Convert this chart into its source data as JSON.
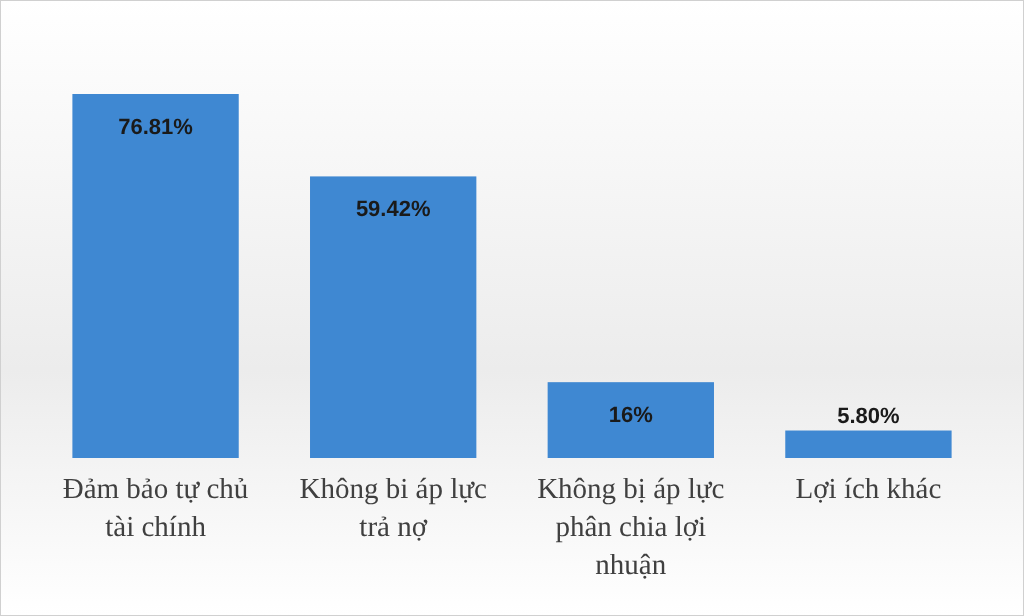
{
  "chart_data": {
    "type": "bar",
    "categories": [
      "Đảm bảo tự chủ tài chính",
      "Không bi áp lực trả nợ",
      "Không bị áp lực phân chia lợi nhuận",
      "Lợi ích khác"
    ],
    "values": [
      76.81,
      59.42,
      16,
      5.8
    ],
    "value_labels": [
      "76.81%",
      "59.42%",
      "16%",
      "5.80%"
    ],
    "color": "#3f88d2"
  }
}
